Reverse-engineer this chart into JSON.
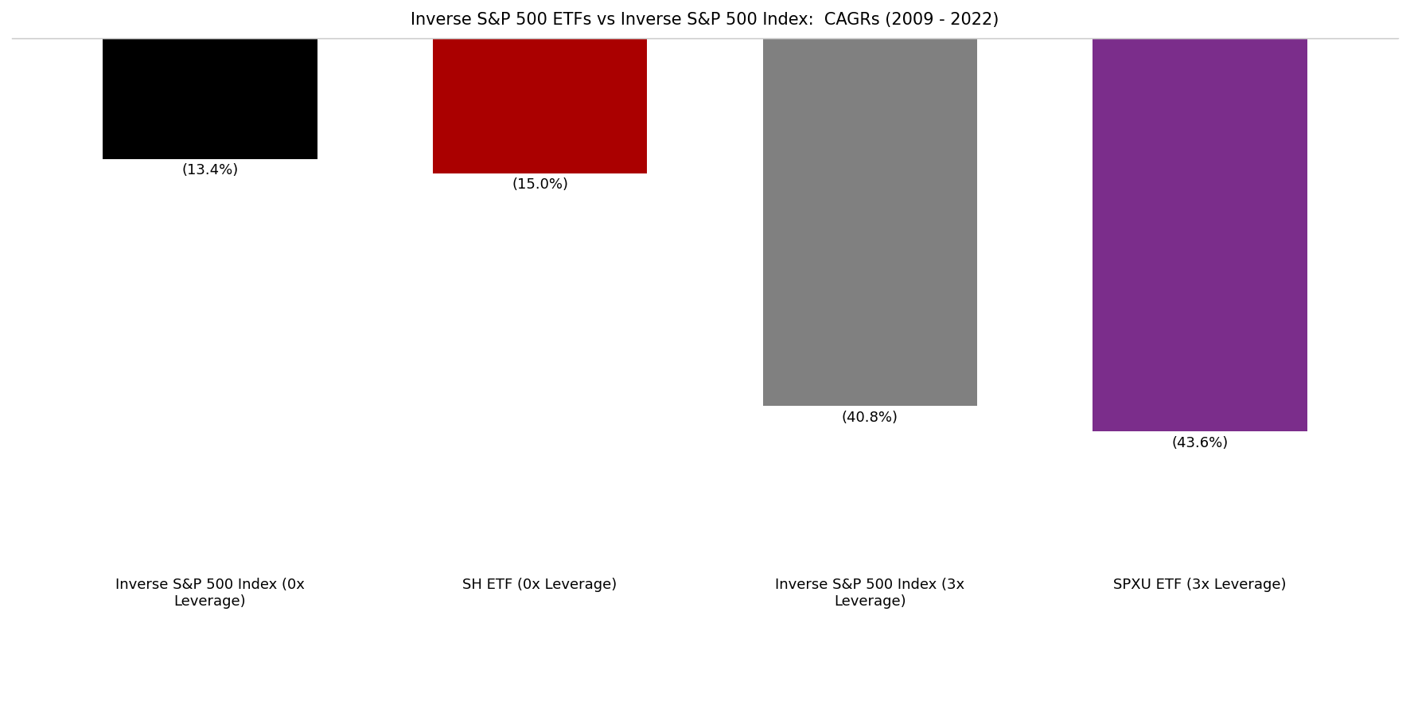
{
  "title": "Inverse S&P 500 ETFs vs Inverse S&P 500 Index:  CAGRs (2009 - 2022)",
  "categories": [
    "Inverse S&P 500 Index (0x\nLeverage)",
    "SH ETF (0x Leverage)",
    "Inverse S&P 500 Index (3x\nLeverage)",
    "SPXU ETF (3x Leverage)"
  ],
  "values": [
    -13.4,
    -15.0,
    -40.8,
    -43.6
  ],
  "labels": [
    "(13.4%)",
    "(15.0%)",
    "(40.8%)",
    "(43.6%)"
  ],
  "colors": [
    "#000000",
    "#aa0000",
    "#808080",
    "#7b2d8b"
  ],
  "ylim": [
    -50,
    0
  ],
  "background_color": "#ffffff",
  "title_fontsize": 15,
  "label_fontsize": 13,
  "tick_fontsize": 13,
  "bar_width": 0.65
}
